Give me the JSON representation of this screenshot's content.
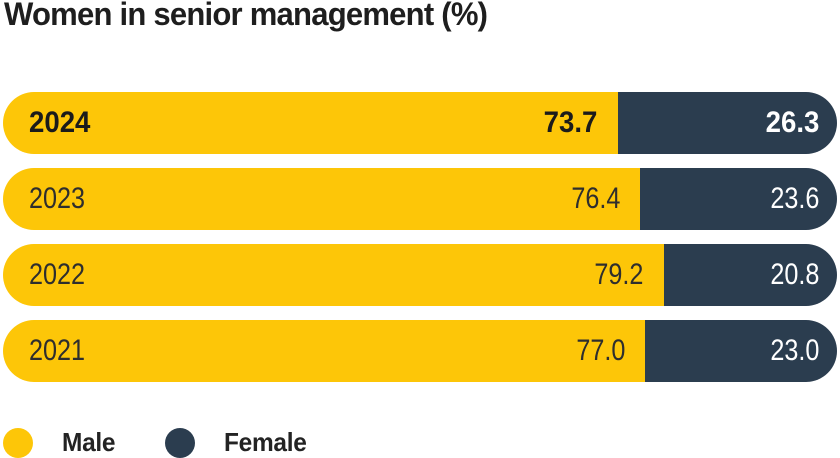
{
  "title": "Women in senior management (%)",
  "colors": {
    "male": "#fdc608",
    "female": "#2b3d4f",
    "title_text": "#1e1e1e",
    "bar_text_dark": "#1b1b1b",
    "bar_text_light_row": "#2e2e2e",
    "bar_text_on_navy": "#ffffff",
    "background": "#ffffff"
  },
  "chart_data": {
    "type": "bar",
    "orientation": "horizontal",
    "stacked": true,
    "title": "Women in senior management (%)",
    "categories": [
      "2024",
      "2023",
      "2022",
      "2021"
    ],
    "series": [
      {
        "name": "Male",
        "color": "#fdc608",
        "values": [
          73.7,
          76.4,
          79.2,
          77.0
        ]
      },
      {
        "name": "Female",
        "color": "#2b3d4f",
        "values": [
          26.3,
          23.6,
          20.8,
          23.0
        ]
      }
    ],
    "value_format": "percent",
    "xlim": [
      0,
      100
    ],
    "grid": false,
    "legend_position": "bottom-left",
    "highlight_category": "2024"
  },
  "rows": [
    {
      "year": "2024",
      "male": "73.7",
      "female": "26.3",
      "emphasis": true
    },
    {
      "year": "2023",
      "male": "76.4",
      "female": "23.6",
      "emphasis": false
    },
    {
      "year": "2022",
      "male": "79.2",
      "female": "20.8",
      "emphasis": false
    },
    {
      "year": "2021",
      "male": "77.0",
      "female": "23.0",
      "emphasis": false
    }
  ],
  "legend": {
    "male_label": "Male",
    "female_label": "Female"
  }
}
